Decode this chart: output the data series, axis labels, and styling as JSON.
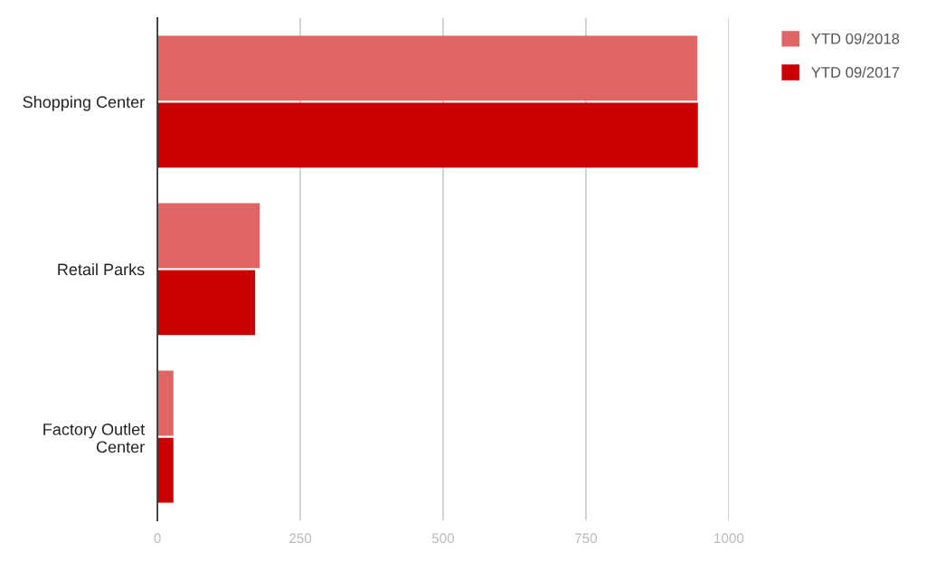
{
  "chart_data": {
    "type": "bar",
    "orientation": "horizontal",
    "categories": [
      "Shopping Center",
      "Retail Parks",
      "Factory Outlet\nCenter"
    ],
    "series": [
      {
        "name": "YTD 09/2018",
        "color": "#e06666",
        "values": [
          945,
          179,
          28
        ]
      },
      {
        "name": "YTD 09/2017",
        "color": "#cc0000",
        "values": [
          946,
          171,
          28
        ]
      }
    ],
    "xlim": [
      0,
      1000
    ],
    "xticks": [
      0,
      250,
      500,
      750,
      1000
    ],
    "grid": "x",
    "legend": "top right"
  }
}
